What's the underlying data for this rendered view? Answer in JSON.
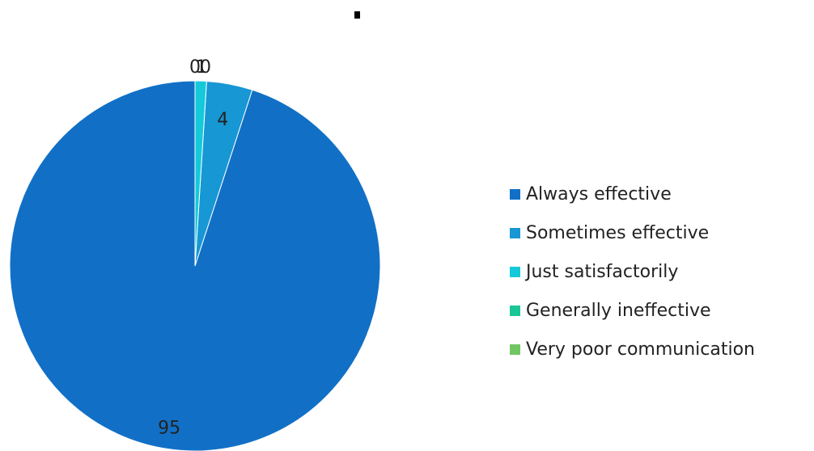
{
  "chart_data": {
    "type": "pie",
    "title": "",
    "categories": [
      "Always effective",
      "Sometimes effective",
      "Just satisfactorily",
      "Generally ineffective",
      "Very poor communication"
    ],
    "values": [
      95,
      4,
      1,
      0,
      0
    ],
    "data_labels": [
      "95",
      "4",
      "1",
      "0",
      "0"
    ],
    "colors": [
      "#1170C6",
      "#1797D4",
      "#14CADA",
      "#1AC596",
      "#72C663"
    ],
    "legend_position": "right"
  }
}
